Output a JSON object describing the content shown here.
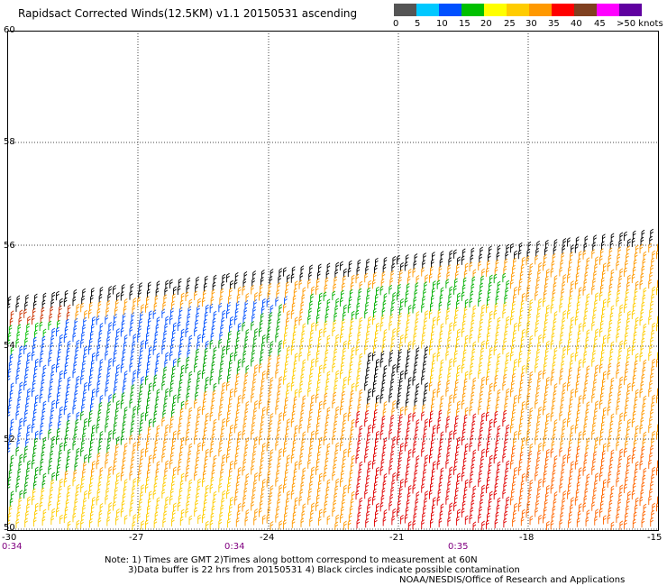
{
  "title": "Rapidsact Corrected Winds(12.5KM) v1.1 20150531 ascending",
  "colorscale": {
    "colors": [
      "#444444",
      "#888888",
      "#00b0f0",
      "#0040ff",
      "#00c000",
      "#008000",
      "#ffff00",
      "#ffc000",
      "#ff9933",
      "#ff3300",
      "#cc0033",
      "#ff6666",
      "#704030",
      "#a0705a",
      "#e060e0",
      "#b000d0",
      "#8000c0",
      "#400080"
    ],
    "labels": [
      "0",
      "5",
      "10",
      "15",
      "20",
      "25",
      "30",
      "35",
      "40",
      "45",
      ">50 knots"
    ]
  },
  "map": {
    "latitude_labels": [
      "60",
      "58",
      "56",
      "54",
      "52",
      "50"
    ],
    "longitude_labels": [
      "-30",
      "-27",
      "-24",
      "-21",
      "-18",
      "-15"
    ],
    "time_labels": [
      "0:34",
      "0:34",
      "0:35"
    ]
  },
  "notes": [
    "Note: 1) Times are GMT 2)Times along bottom correspond to measurement at 60N",
    "3)Data buffer is 22 hrs from 20150531 4) Black circles indicate possible contamination",
    "NOAA/NESDIS/Office of Research and Applications"
  ]
}
